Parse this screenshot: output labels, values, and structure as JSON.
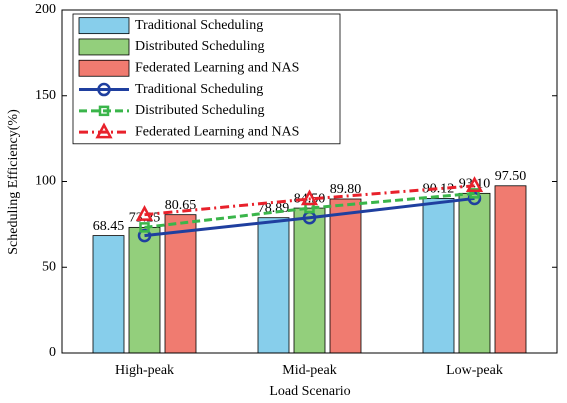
{
  "chart_data": {
    "type": "bar",
    "x_label": "Load Scenario",
    "y_label": "Scheduling Efficiency(%)",
    "categories": [
      "High-peak",
      "Mid-peak",
      "Low-peak"
    ],
    "ylim": [
      0,
      200
    ],
    "yticks": [
      0,
      50,
      100,
      150,
      200
    ],
    "grid": false,
    "legend": "upper left",
    "series": [
      {
        "type": "bar",
        "name": "Traditional Scheduling",
        "color": "#87ceeb",
        "values": [
          68.45,
          78.89,
          90.12
        ],
        "value_labels": [
          "68.45",
          "78.89",
          "90.12"
        ]
      },
      {
        "type": "bar",
        "name": "Distributed Scheduling",
        "color": "#93cf7c",
        "values": [
          73.25,
          84.5,
          93.1
        ],
        "value_labels": [
          "73.25",
          "84.50",
          "93.10"
        ]
      },
      {
        "type": "bar",
        "name": "Federated Learning and NAS",
        "color": "#f07b70",
        "values": [
          80.65,
          89.8,
          97.5
        ],
        "value_labels": [
          "80.65",
          "89.80",
          "97.50"
        ]
      },
      {
        "type": "line",
        "name": "Traditional Scheduling",
        "color": "#1f3f9f",
        "marker": "circle",
        "dash": "solid",
        "values": [
          68.45,
          78.89,
          90.12
        ]
      },
      {
        "type": "line",
        "name": "Distributed Scheduling",
        "color": "#3ab54a",
        "marker": "square",
        "dash": "dashed",
        "values": [
          73.25,
          84.5,
          93.1
        ]
      },
      {
        "type": "line",
        "name": "Federated Learning and NAS",
        "color": "#e8212b",
        "marker": "triangle",
        "dash": "dashdot",
        "values": [
          80.65,
          89.8,
          97.5
        ]
      }
    ]
  }
}
